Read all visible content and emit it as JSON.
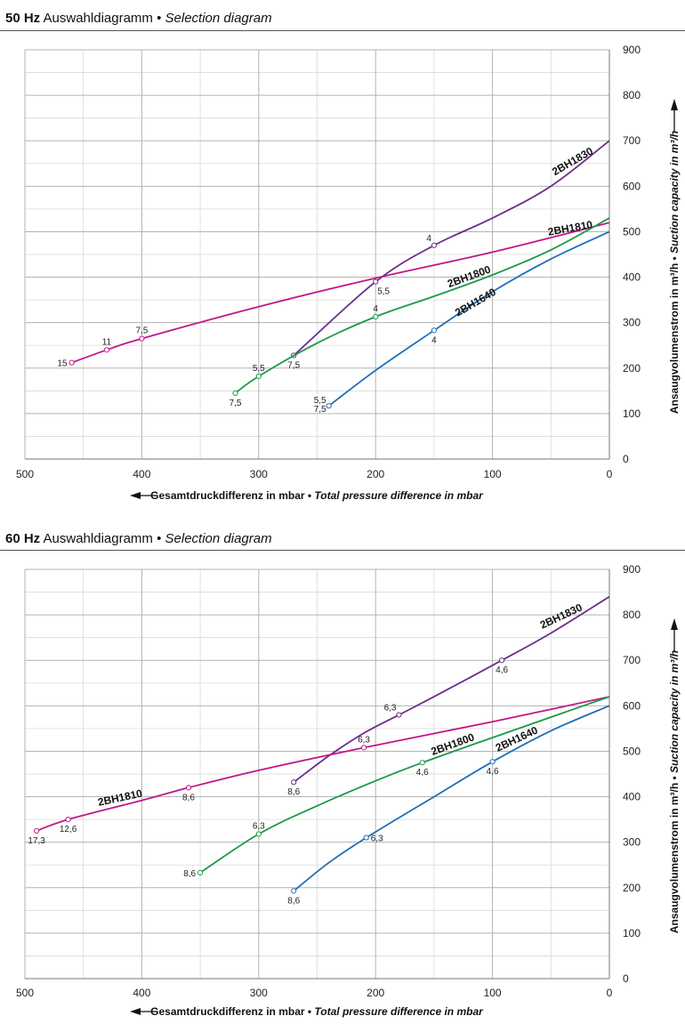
{
  "charts": [
    {
      "heading": {
        "hz": "50 Hz",
        "de": "Auswahldiagramm",
        "bullet": "•",
        "en": "Selection diagram"
      },
      "xlabel": {
        "de": "Gesamtdruckdifferenz in mbar",
        "bullet": "•",
        "en": "Total pressure difference in mbar"
      },
      "ylabel": {
        "de": "Ansaugvolumenstrom in m³/h",
        "bullet": "•",
        "en": "Suction capacity in m³/h"
      }
    },
    {
      "heading": {
        "hz": "60 Hz",
        "de": "Auswahldiagramm",
        "bullet": "•",
        "en": "Selection diagram"
      },
      "xlabel": {
        "de": "Gesamtdruckdifferenz in mbar",
        "bullet": "•",
        "en": "Total pressure difference in mbar"
      },
      "ylabel": {
        "de": "Ansaugvolumenstrom in m³/h",
        "bullet": "•",
        "en": "Suction capacity in m³/h"
      }
    }
  ],
  "chart_data": [
    {
      "type": "line",
      "title": "50 Hz Auswahldiagramm • Selection diagram",
      "xlabel": "Gesamtdruckdifferenz in mbar • Total pressure difference in mbar",
      "ylabel": "Ansaugvolumenstrom in m³/h • Suction capacity in m³/h",
      "xlim": [
        500,
        0
      ],
      "ylim": [
        0,
        900
      ],
      "xticks": [
        500,
        400,
        300,
        200,
        100,
        0
      ],
      "yticks": [
        0,
        100,
        200,
        300,
        400,
        500,
        600,
        700,
        800,
        900
      ],
      "grid": true,
      "series": [
        {
          "name": "2BH1830",
          "color": "#6b2d8c",
          "points": [
            [
              270,
              228
            ],
            [
              200,
              390
            ],
            [
              150,
              470
            ],
            [
              100,
              530
            ],
            [
              50,
              600
            ],
            [
              0,
              700
            ]
          ],
          "markers": [
            {
              "x": 270,
              "y": 228,
              "label": "7,5",
              "pos": "below"
            },
            {
              "x": 200,
              "y": 390,
              "label": "5,5",
              "pos": "below-right"
            },
            {
              "x": 150,
              "y": 470,
              "label": "4",
              "pos": "above-left"
            }
          ],
          "name_label": {
            "x": 30,
            "y": 648,
            "angle": -30
          }
        },
        {
          "name": "2BH1810",
          "color": "#c0188a",
          "points": [
            [
              460,
              212
            ],
            [
              430,
              240
            ],
            [
              400,
              265
            ],
            [
              300,
              335
            ],
            [
              200,
              398
            ],
            [
              100,
              455
            ],
            [
              0,
              520
            ]
          ],
          "markers": [
            {
              "x": 460,
              "y": 212,
              "label": "15",
              "pos": "left"
            },
            {
              "x": 430,
              "y": 240,
              "label": "11",
              "pos": "above"
            },
            {
              "x": 400,
              "y": 265,
              "label": "7,5",
              "pos": "above"
            }
          ],
          "name_label": {
            "x": 33,
            "y": 500,
            "angle": -10
          }
        },
        {
          "name": "2BH1800",
          "color": "#1a9a48",
          "points": [
            [
              320,
              145
            ],
            [
              300,
              182
            ],
            [
              250,
              255
            ],
            [
              200,
              313
            ],
            [
              150,
              358
            ],
            [
              100,
              405
            ],
            [
              50,
              460
            ],
            [
              0,
              530
            ]
          ],
          "markers": [
            {
              "x": 320,
              "y": 145,
              "label": "7,5",
              "pos": "below"
            },
            {
              "x": 300,
              "y": 182,
              "label": "5,5",
              "pos": "above"
            },
            {
              "x": 200,
              "y": 313,
              "label": "4",
              "pos": "above"
            }
          ],
          "name_label": {
            "x": 119,
            "y": 394,
            "angle": -20
          }
        },
        {
          "name": "2BH1640",
          "color": "#1e6fb5",
          "points": [
            [
              240,
              117
            ],
            [
              200,
              195
            ],
            [
              150,
              283
            ],
            [
              100,
              368
            ],
            [
              50,
              440
            ],
            [
              0,
              500
            ]
          ],
          "markers": [
            {
              "x": 240,
              "y": 117,
              "label": "5,5",
              "label2": "7,5",
              "pos": "left-stack"
            },
            {
              "x": 150,
              "y": 283,
              "label": "4",
              "pos": "below"
            }
          ],
          "name_label": {
            "x": 113,
            "y": 338,
            "angle": -30
          }
        }
      ]
    },
    {
      "type": "line",
      "title": "60 Hz Auswahldiagramm • Selection diagram",
      "xlabel": "Gesamtdruckdifferenz in mbar • Total pressure difference in mbar",
      "ylabel": "Ansaugvolumenstrom in m³/h • Suction capacity in m³/h",
      "xlim": [
        500,
        0
      ],
      "ylim": [
        0,
        900
      ],
      "xticks": [
        500,
        400,
        300,
        200,
        100,
        0
      ],
      "yticks": [
        0,
        100,
        200,
        300,
        400,
        500,
        600,
        700,
        800,
        900
      ],
      "grid": true,
      "series": [
        {
          "name": "2BH1830",
          "color": "#6b2d8c",
          "points": [
            [
              270,
              432
            ],
            [
              240,
              490
            ],
            [
              210,
              540
            ],
            [
              180,
              580
            ],
            [
              150,
              620
            ],
            [
              92,
              700
            ],
            [
              50,
              760
            ],
            [
              0,
              840
            ]
          ],
          "markers": [
            {
              "x": 270,
              "y": 432,
              "label": "8,6",
              "pos": "below"
            },
            {
              "x": 180,
              "y": 580,
              "label": "6,3",
              "pos": "above-left"
            },
            {
              "x": 92,
              "y": 700,
              "label": "4,6",
              "pos": "below"
            }
          ],
          "name_label": {
            "x": 40,
            "y": 790,
            "angle": -25
          }
        },
        {
          "name": "2BH1810",
          "color": "#c0188a",
          "points": [
            [
              490,
              325
            ],
            [
              463,
              350
            ],
            [
              400,
              392
            ],
            [
              360,
              420
            ],
            [
              300,
              458
            ],
            [
              210,
              508
            ],
            [
              100,
              565
            ],
            [
              0,
              620
            ]
          ],
          "markers": [
            {
              "x": 490,
              "y": 325,
              "label": "17,3",
              "pos": "below"
            },
            {
              "x": 463,
              "y": 350,
              "label": "12,6",
              "pos": "below"
            },
            {
              "x": 360,
              "y": 420,
              "label": "8,6",
              "pos": "below"
            },
            {
              "x": 210,
              "y": 508,
              "label": "6,3",
              "pos": "above"
            }
          ],
          "name_label": {
            "x": 418,
            "y": 390,
            "angle": -12
          }
        },
        {
          "name": "2BH1800",
          "color": "#1a9a48",
          "points": [
            [
              350,
              233
            ],
            [
              300,
              318
            ],
            [
              250,
              380
            ],
            [
              200,
              435
            ],
            [
              160,
              475
            ],
            [
              100,
              530
            ],
            [
              50,
              575
            ],
            [
              0,
              620
            ]
          ],
          "markers": [
            {
              "x": 350,
              "y": 233,
              "label": "8,6",
              "pos": "left"
            },
            {
              "x": 300,
              "y": 318,
              "label": "6,3",
              "pos": "above"
            },
            {
              "x": 160,
              "y": 475,
              "label": "4,6",
              "pos": "below"
            }
          ],
          "name_label": {
            "x": 133,
            "y": 508,
            "angle": -20
          }
        },
        {
          "name": "2BH1640",
          "color": "#1e6fb5",
          "points": [
            [
              270,
              193
            ],
            [
              240,
              255
            ],
            [
              208,
              310
            ],
            [
              150,
              400
            ],
            [
              100,
              477
            ],
            [
              50,
              545
            ],
            [
              0,
              600
            ]
          ],
          "markers": [
            {
              "x": 270,
              "y": 193,
              "label": "8,6",
              "pos": "below"
            },
            {
              "x": 208,
              "y": 310,
              "label": "6,3",
              "pos": "right"
            },
            {
              "x": 100,
              "y": 477,
              "label": "4,6",
              "pos": "below"
            }
          ],
          "name_label": {
            "x": 78,
            "y": 520,
            "angle": -25
          }
        }
      ]
    }
  ]
}
